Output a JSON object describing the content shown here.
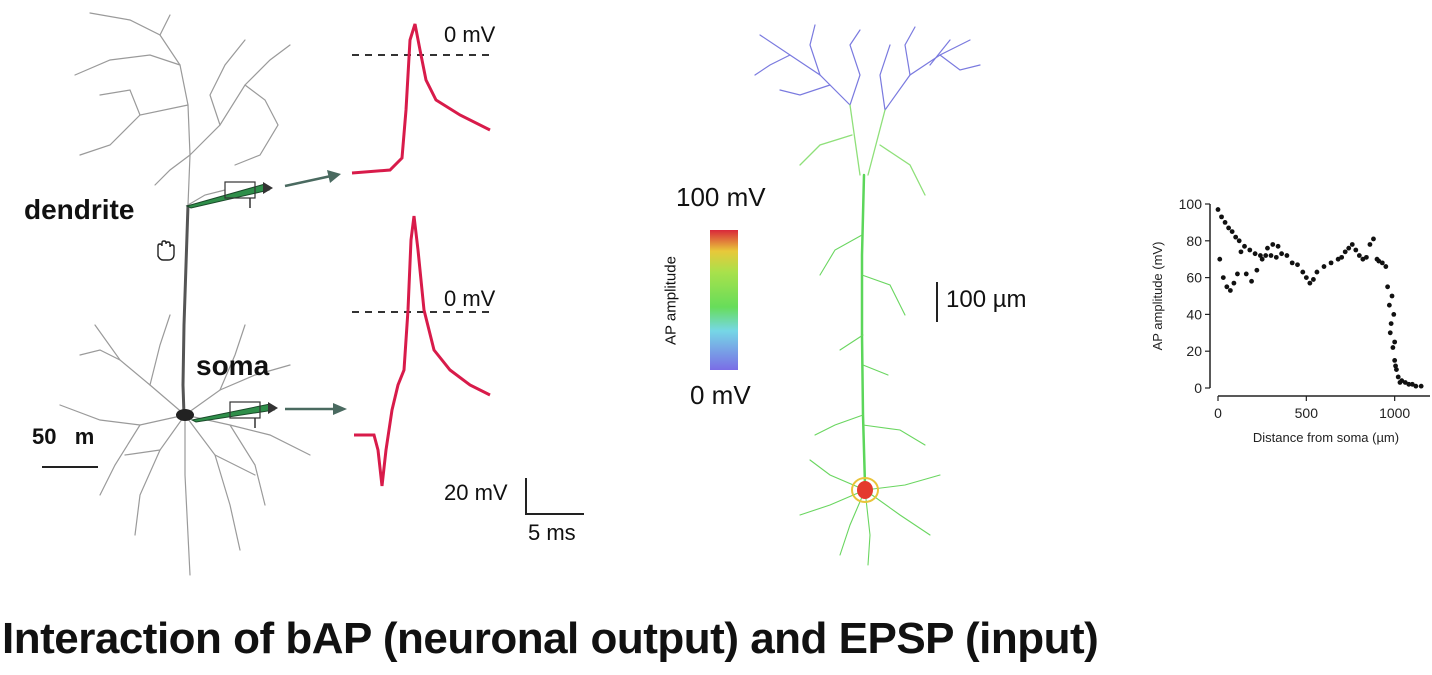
{
  "slide": {
    "title": "Interaction of bAP (neuronal output) and EPSP (input)"
  },
  "neuron_panel": {
    "dendrite_label": "dendrite",
    "soma_label": "soma",
    "scale_bar_label": "50   m",
    "cursor_icon": "hand-grab-icon"
  },
  "traces_panel": {
    "top_zero_label": "0 mV",
    "bottom_zero_label": "0 mV",
    "scale_voltage_label": "20 mV",
    "scale_time_label": "5 ms",
    "trace_color": "#d81b4a"
  },
  "colorbar": {
    "top_label": "100 mV",
    "bottom_label": "0 mV",
    "axis_label": "AP amplitude",
    "colors": [
      "#d9283a",
      "#e9e24b",
      "#67dd5a",
      "#76d7e6",
      "#7a6de6"
    ]
  },
  "model_panel": {
    "scale_label": "100 µm"
  },
  "chart_data": {
    "type": "scatter",
    "title": "",
    "xlabel": "Distance from soma (µm)",
    "ylabel": "AP amplitude (mV)",
    "xlim": [
      0,
      1200
    ],
    "ylim": [
      0,
      100
    ],
    "xticks": [
      "0",
      "500",
      "1000"
    ],
    "yticks": [
      "0",
      "20",
      "40",
      "60",
      "80",
      "100"
    ],
    "points": [
      [
        0,
        97
      ],
      [
        20,
        93
      ],
      [
        40,
        90
      ],
      [
        60,
        87
      ],
      [
        80,
        85
      ],
      [
        100,
        82
      ],
      [
        120,
        80
      ],
      [
        150,
        77
      ],
      [
        180,
        75
      ],
      [
        210,
        73
      ],
      [
        240,
        72
      ],
      [
        270,
        72
      ],
      [
        300,
        72
      ],
      [
        330,
        71
      ],
      [
        10,
        70
      ],
      [
        30,
        60
      ],
      [
        50,
        55
      ],
      [
        70,
        53
      ],
      [
        90,
        57
      ],
      [
        110,
        62
      ],
      [
        130,
        74
      ],
      [
        160,
        62
      ],
      [
        190,
        58
      ],
      [
        220,
        64
      ],
      [
        250,
        70
      ],
      [
        280,
        76
      ],
      [
        310,
        78
      ],
      [
        340,
        77
      ],
      [
        360,
        73
      ],
      [
        390,
        72
      ],
      [
        420,
        68
      ],
      [
        450,
        67
      ],
      [
        480,
        63
      ],
      [
        500,
        60
      ],
      [
        520,
        57
      ],
      [
        540,
        59
      ],
      [
        560,
        63
      ],
      [
        600,
        66
      ],
      [
        640,
        68
      ],
      [
        680,
        70
      ],
      [
        700,
        71
      ],
      [
        720,
        74
      ],
      [
        740,
        76
      ],
      [
        760,
        78
      ],
      [
        780,
        75
      ],
      [
        800,
        72
      ],
      [
        820,
        70
      ],
      [
        840,
        71
      ],
      [
        860,
        78
      ],
      [
        880,
        81
      ],
      [
        900,
        70
      ],
      [
        910,
        69
      ],
      [
        930,
        68
      ],
      [
        950,
        66
      ],
      [
        960,
        55
      ],
      [
        970,
        45
      ],
      [
        975,
        30
      ],
      [
        980,
        35
      ],
      [
        990,
        22
      ],
      [
        1000,
        15
      ],
      [
        1010,
        10
      ],
      [
        1020,
        6
      ],
      [
        1040,
        4
      ],
      [
        1060,
        3
      ],
      [
        1080,
        2
      ],
      [
        1100,
        2
      ],
      [
        1000,
        25
      ],
      [
        995,
        40
      ],
      [
        985,
        50
      ],
      [
        1005,
        12
      ],
      [
        1030,
        3
      ],
      [
        1120,
        1
      ],
      [
        1150,
        1
      ]
    ],
    "grid": false
  }
}
